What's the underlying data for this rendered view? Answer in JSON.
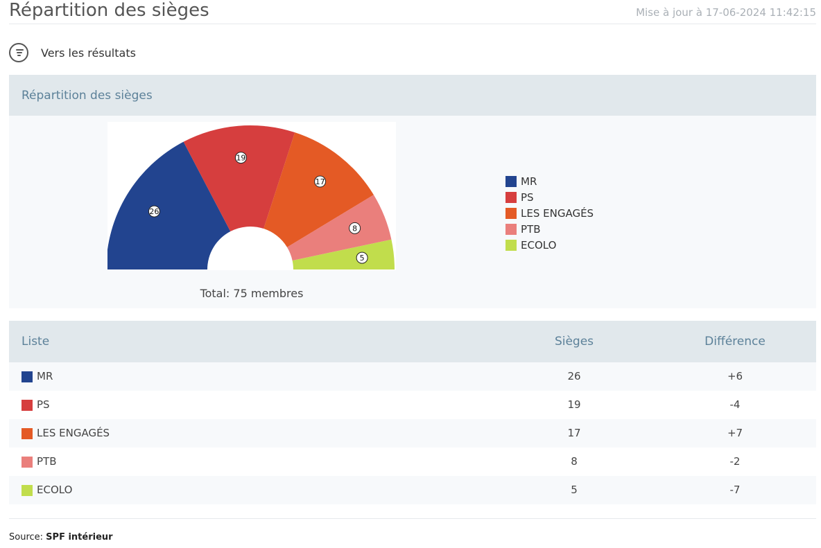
{
  "header": {
    "title": "Répartition des sièges",
    "updated": "Mise à jour à 17-06-2024 11:42:15"
  },
  "results_link": {
    "label": "Vers les résultats",
    "icon": "results-list-icon"
  },
  "panel": {
    "title": "Répartition des sièges",
    "total": "Total: 75 membres"
  },
  "chart_data": {
    "type": "pie",
    "subtype": "semicircle-donut",
    "total_seats": 75,
    "categories": [
      "MR",
      "PS",
      "LES ENGAGÉS",
      "PTB",
      "ECOLO"
    ],
    "values": [
      26,
      19,
      17,
      8,
      5
    ],
    "colors": [
      "#22448f",
      "#d63e3e",
      "#e45a25",
      "#ea7f7c",
      "#c1dd4c"
    ],
    "legend_position": "right"
  },
  "table": {
    "headers": {
      "list": "Liste",
      "seats": "Sièges",
      "diff": "Différence"
    },
    "rows": [
      {
        "name": "MR",
        "seats": "26",
        "diff": "+6",
        "color": "#22448f"
      },
      {
        "name": "PS",
        "seats": "19",
        "diff": "-4",
        "color": "#d63e3e"
      },
      {
        "name": "LES ENGAGÉS",
        "seats": "17",
        "diff": "+7",
        "color": "#e45a25"
      },
      {
        "name": "PTB",
        "seats": "8",
        "diff": "-2",
        "color": "#ea7f7c"
      },
      {
        "name": "ECOLO",
        "seats": "5",
        "diff": "-7",
        "color": "#c1dd4c"
      }
    ]
  },
  "footer": {
    "source_label": "Source:",
    "source_name": "SPF intérieur"
  }
}
